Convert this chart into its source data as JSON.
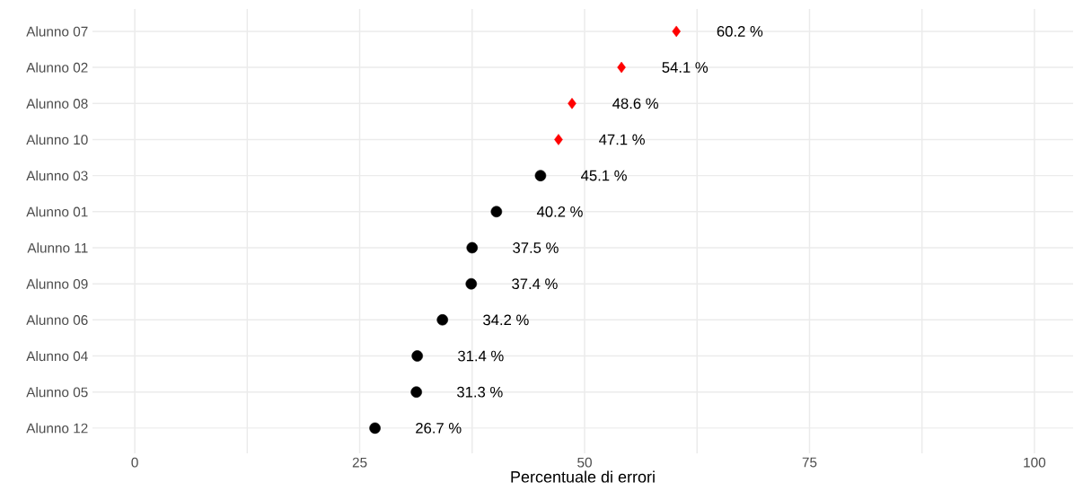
{
  "chart_data": {
    "type": "scatter",
    "orientation": "horizontal",
    "xlabel": "Percentuale di errori",
    "categories": [
      "Alunno 07",
      "Alunno 02",
      "Alunno 08",
      "Alunno 10",
      "Alunno 03",
      "Alunno 01",
      "Alunno 11",
      "Alunno 09",
      "Alunno 06",
      "Alunno 04",
      "Alunno 05",
      "Alunno 12"
    ],
    "series": [
      {
        "color": "#ff0000",
        "marker": "diamond",
        "values": [
          60.2,
          54.1,
          48.6,
          47.1,
          null,
          null,
          null,
          null,
          null,
          null,
          null,
          null
        ],
        "value_labels": [
          "60.2 %",
          "54.1 %",
          "48.6 %",
          "47.1 %",
          null,
          null,
          null,
          null,
          null,
          null,
          null,
          null
        ]
      },
      {
        "color": "#000000",
        "marker": "circle",
        "values": [
          null,
          null,
          null,
          null,
          45.1,
          40.2,
          37.5,
          37.4,
          34.2,
          31.4,
          31.3,
          26.7
        ],
        "value_labels": [
          null,
          null,
          null,
          null,
          "45.1 %",
          "40.2 %",
          "37.5 %",
          "37.4 %",
          "34.2 %",
          "31.4 %",
          "31.3 %",
          "26.7 %"
        ]
      }
    ],
    "xlim": [
      -4.7,
      104.3
    ],
    "xticks": [
      0,
      {
        "value": 12.5,
        "label": null
      },
      25,
      {
        "value": 37.5,
        "label": null
      },
      50,
      {
        "value": 62.5,
        "label": null
      },
      75,
      {
        "value": 87.5,
        "label": null
      },
      100
    ],
    "grid": true
  }
}
